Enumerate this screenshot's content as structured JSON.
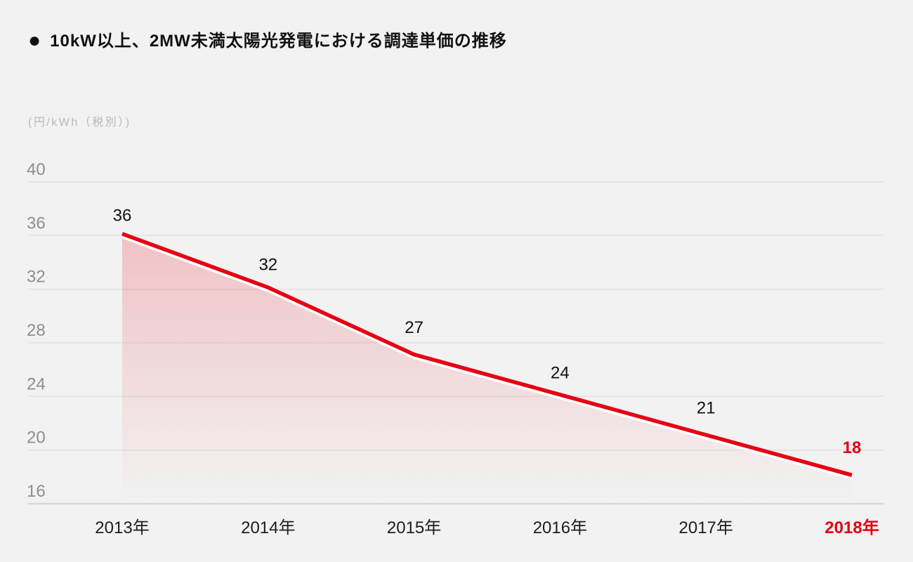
{
  "header": {
    "bullet": "●",
    "title": "10kW以上、2MW未満太陽光発電における調達単価の推移"
  },
  "chart_data": {
    "type": "area",
    "title": "10kW以上、2MW未満太陽光発電における調達単価の推移",
    "unit_label": "(円/kWh（税別）)",
    "categories": [
      "2013年",
      "2014年",
      "2015年",
      "2016年",
      "2017年",
      "2018年"
    ],
    "values": [
      36,
      32,
      27,
      24,
      21,
      18
    ],
    "data_labels": [
      "36",
      "32",
      "27",
      "24",
      "21",
      "18"
    ],
    "yticks": [
      40,
      36,
      32,
      28,
      24,
      20,
      16
    ],
    "ylim": [
      16,
      40
    ],
    "xlabel": "",
    "ylabel": "円/kWh（税別）",
    "grid": true,
    "legend": "none",
    "highlight_last_index": 5,
    "colors": {
      "background": "#f2f2f2",
      "line": "#e60012",
      "halo": "#ffffff",
      "area_top": "rgba(230,0,18,0.20)",
      "area_bottom": "rgba(230,0,18,0)",
      "grid": "#e2e2e2",
      "axis": "#d7d7d7",
      "ytick_text": "#8e8e8e",
      "xtick_text": "#1d1d1d",
      "data_label_text": "#111111",
      "highlight": "#e60012",
      "title_text": "#111111",
      "unit_text": "#b9b9b9"
    }
  }
}
